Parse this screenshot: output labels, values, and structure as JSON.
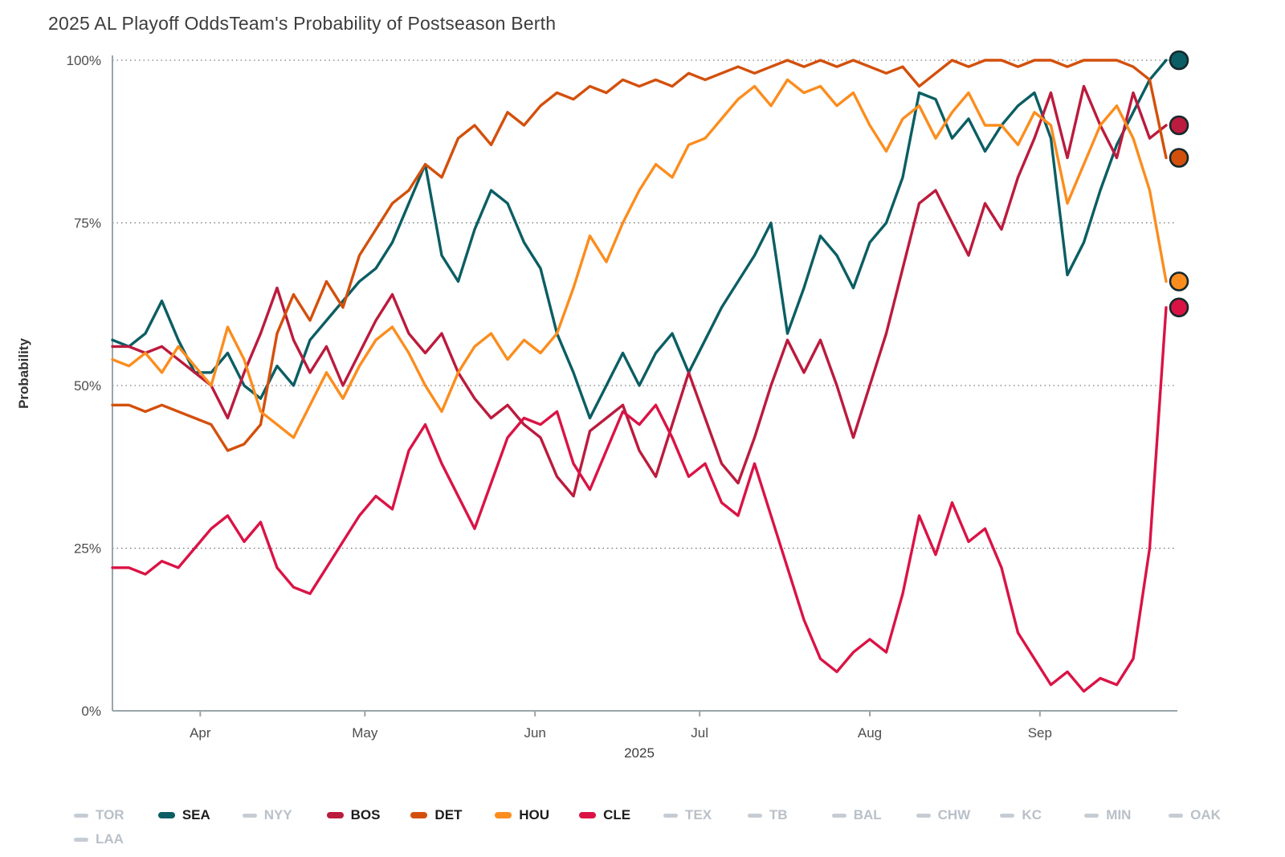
{
  "title": "2025 AL Playoff Odds",
  "subtitle": "Team's Probability of Postseason Berth",
  "chart_data": {
    "type": "line",
    "title": "2025 AL Playoff Odds",
    "subtitle": "Team's Probability of Postseason Berth",
    "xlabel": "2025",
    "ylabel": "Probability",
    "ylim": [
      0,
      100
    ],
    "x_domain": [
      0,
      192
    ],
    "x_unit": "days since 2025-03-16 (approx daily samples)",
    "grid": "horizontal-dotted",
    "legend_position": "bottom",
    "y_ticks": [
      {
        "value": 0,
        "label": "0%"
      },
      {
        "value": 25,
        "label": "25%"
      },
      {
        "value": 50,
        "label": "50%"
      },
      {
        "value": 75,
        "label": "75%"
      },
      {
        "value": 100,
        "label": "100%"
      }
    ],
    "x_ticks": [
      {
        "day": 16,
        "label": "Apr"
      },
      {
        "day": 46,
        "label": "May"
      },
      {
        "day": 77,
        "label": "Jun"
      },
      {
        "day": 107,
        "label": "Jul"
      },
      {
        "day": 138,
        "label": "Aug"
      },
      {
        "day": 169,
        "label": "Sep"
      }
    ],
    "x": [
      0,
      3,
      6,
      9,
      12,
      15,
      18,
      21,
      24,
      27,
      30,
      33,
      36,
      39,
      42,
      45,
      48,
      51,
      54,
      57,
      60,
      63,
      66,
      69,
      72,
      75,
      78,
      81,
      84,
      87,
      90,
      93,
      96,
      99,
      102,
      105,
      108,
      111,
      114,
      117,
      120,
      123,
      126,
      129,
      132,
      135,
      138,
      141,
      144,
      147,
      150,
      153,
      156,
      159,
      162,
      165,
      168,
      171,
      174,
      177,
      180,
      183,
      186,
      189,
      192
    ],
    "series": [
      {
        "name": "SEA",
        "color": "#0b5e63",
        "final": 100,
        "values": [
          57,
          56,
          58,
          63,
          57,
          52,
          52,
          55,
          50,
          48,
          53,
          50,
          57,
          60,
          63,
          66,
          68,
          72,
          78,
          84,
          70,
          66,
          74,
          80,
          78,
          72,
          68,
          58,
          52,
          45,
          50,
          55,
          50,
          55,
          58,
          52,
          57,
          62,
          66,
          70,
          75,
          58,
          65,
          73,
          70,
          65,
          72,
          75,
          82,
          95,
          94,
          88,
          91,
          86,
          90,
          93,
          95,
          88,
          67,
          72,
          80,
          87,
          92,
          97,
          100
        ]
      },
      {
        "name": "BOS",
        "color": "#bb1b3d",
        "final": 90,
        "values": [
          56,
          56,
          55,
          56,
          54,
          52,
          50,
          45,
          52,
          58,
          65,
          57,
          52,
          56,
          50,
          55,
          60,
          64,
          58,
          55,
          58,
          52,
          48,
          45,
          47,
          44,
          42,
          36,
          33,
          43,
          45,
          47,
          40,
          36,
          44,
          52,
          45,
          38,
          35,
          42,
          50,
          57,
          52,
          57,
          50,
          42,
          50,
          58,
          68,
          78,
          80,
          75,
          70,
          78,
          74,
          82,
          88,
          95,
          85,
          96,
          90,
          85,
          95,
          88,
          90
        ]
      },
      {
        "name": "DET",
        "color": "#d3500c",
        "final": 85,
        "values": [
          47,
          47,
          46,
          47,
          46,
          45,
          44,
          40,
          41,
          44,
          58,
          64,
          60,
          66,
          62,
          70,
          74,
          78,
          80,
          84,
          82,
          88,
          90,
          87,
          92,
          90,
          93,
          95,
          94,
          96,
          95,
          97,
          96,
          97,
          96,
          98,
          97,
          98,
          99,
          98,
          99,
          100,
          99,
          100,
          99,
          100,
          99,
          98,
          99,
          96,
          98,
          100,
          99,
          100,
          100,
          99,
          100,
          100,
          99,
          100,
          100,
          100,
          99,
          97,
          85
        ]
      },
      {
        "name": "HOU",
        "color": "#fb8d1e",
        "final": 66,
        "values": [
          54,
          53,
          55,
          52,
          56,
          53,
          50,
          59,
          54,
          46,
          44,
          42,
          47,
          52,
          48,
          53,
          57,
          59,
          55,
          50,
          46,
          52,
          56,
          58,
          54,
          57,
          55,
          58,
          65,
          73,
          69,
          75,
          80,
          84,
          82,
          87,
          88,
          91,
          94,
          96,
          93,
          97,
          95,
          96,
          93,
          95,
          90,
          86,
          91,
          93,
          88,
          92,
          95,
          90,
          90,
          87,
          92,
          90,
          78,
          84,
          90,
          93,
          88,
          80,
          66
        ]
      },
      {
        "name": "CLE",
        "color": "#da1345",
        "final": 62,
        "values": [
          22,
          22,
          21,
          23,
          22,
          25,
          28,
          30,
          26,
          29,
          22,
          19,
          18,
          22,
          26,
          30,
          33,
          31,
          40,
          44,
          38,
          33,
          28,
          35,
          42,
          45,
          44,
          46,
          38,
          34,
          40,
          46,
          44,
          47,
          42,
          36,
          38,
          32,
          30,
          38,
          30,
          22,
          14,
          8,
          6,
          9,
          11,
          9,
          18,
          30,
          24,
          32,
          26,
          28,
          22,
          12,
          8,
          4,
          6,
          3,
          5,
          4,
          8,
          25,
          62
        ]
      }
    ],
    "end_markers": true
  },
  "legend": {
    "inactive_color": "#c6ccd3",
    "rows": [
      [
        {
          "label": "TOR",
          "active": false,
          "color": "#c6ccd3"
        },
        {
          "label": "SEA",
          "active": true,
          "color": "#0b5e63"
        },
        {
          "label": "NYY",
          "active": false,
          "color": "#c6ccd3"
        },
        {
          "label": "BOS",
          "active": true,
          "color": "#bb1b3d"
        },
        {
          "label": "DET",
          "active": true,
          "color": "#d3500c"
        },
        {
          "label": "HOU",
          "active": true,
          "color": "#fb8d1e"
        },
        {
          "label": "CLE",
          "active": true,
          "color": "#da1345"
        },
        {
          "label": "TEX",
          "active": false,
          "color": "#c6ccd3"
        },
        {
          "label": "TB",
          "active": false,
          "color": "#c6ccd3"
        },
        {
          "label": "BAL",
          "active": false,
          "color": "#c6ccd3"
        },
        {
          "label": "CHW",
          "active": false,
          "color": "#c6ccd3"
        },
        {
          "label": "KC",
          "active": false,
          "color": "#c6ccd3"
        },
        {
          "label": "MIN",
          "active": false,
          "color": "#c6ccd3"
        },
        {
          "label": "OAK",
          "active": false,
          "color": "#c6ccd3"
        }
      ],
      [
        {
          "label": "LAA",
          "active": false,
          "color": "#c6ccd3"
        }
      ]
    ]
  }
}
